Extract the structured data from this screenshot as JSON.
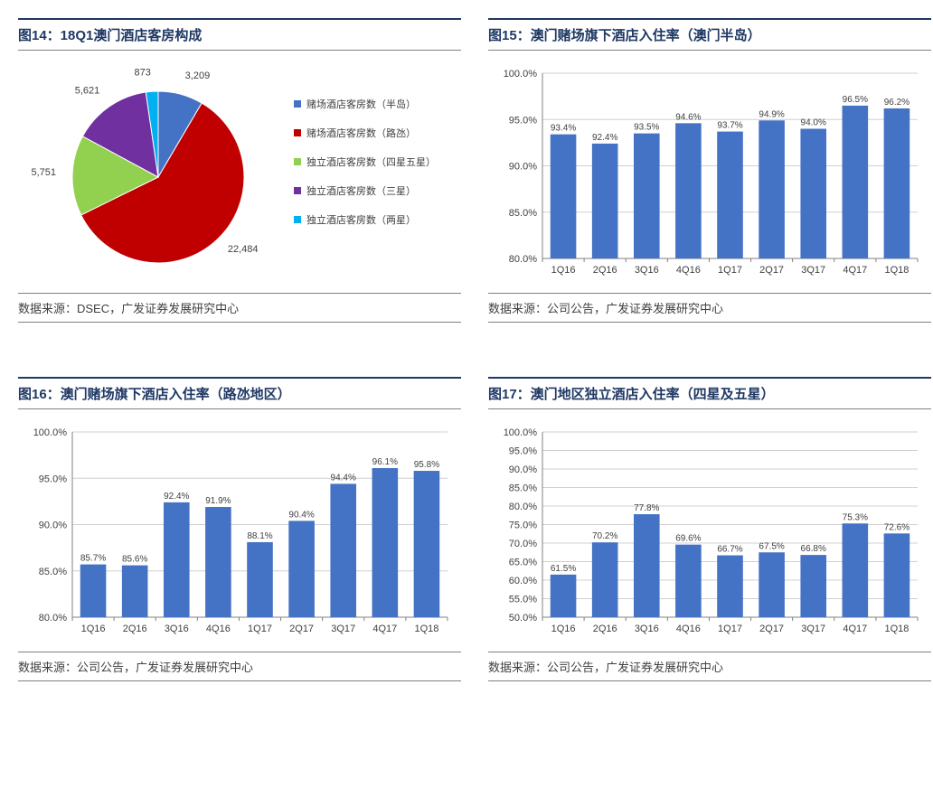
{
  "panels": {
    "p14": {
      "title": "图14：18Q1澳门酒店客房构成",
      "source": "数据来源：DSEC，广发证券发展研究中心",
      "chart": {
        "type": "pie",
        "slices": [
          {
            "label": "赌场酒店客房数（半岛）",
            "value": 3209,
            "color": "#4472c4"
          },
          {
            "label": "赌场酒店客房数（路氹）",
            "value": 22484,
            "color": "#c00000"
          },
          {
            "label": "独立酒店客房数（四星五星）",
            "value": 5751,
            "color": "#92d050"
          },
          {
            "label": "独立酒店客房数（三星）",
            "value": 5621,
            "color": "#7030a0"
          },
          {
            "label": "独立酒店客房数（两星）",
            "value": 873,
            "color": "#00b0f0"
          }
        ],
        "slice_border": "#ffffff",
        "legend_marker": "square"
      }
    },
    "p15": {
      "title": "图15：澳门赌场旗下酒店入住率（澳门半岛）",
      "source": "数据来源：公司公告，广发证券发展研究中心",
      "chart": {
        "type": "bar",
        "categories": [
          "1Q16",
          "2Q16",
          "3Q16",
          "4Q16",
          "1Q17",
          "2Q17",
          "3Q17",
          "4Q17",
          "1Q18"
        ],
        "values": [
          93.4,
          92.4,
          93.5,
          94.6,
          93.7,
          94.9,
          94.0,
          96.5,
          96.2
        ],
        "value_suffix": "%",
        "bar_color": "#4472c4",
        "ymin": 80.0,
        "ymax": 100.0,
        "ystep": 5.0,
        "grid_color": "#d0d0d0",
        "axis_color": "#808080",
        "label_fontsize": 10
      }
    },
    "p16": {
      "title": "图16：澳门赌场旗下酒店入住率（路氹地区）",
      "source": "数据来源：公司公告，广发证券发展研究中心",
      "chart": {
        "type": "bar",
        "categories": [
          "1Q16",
          "2Q16",
          "3Q16",
          "4Q16",
          "1Q17",
          "2Q17",
          "3Q17",
          "4Q17",
          "1Q18"
        ],
        "values": [
          85.7,
          85.6,
          92.4,
          91.9,
          88.1,
          90.4,
          94.4,
          96.1,
          95.8
        ],
        "value_suffix": "%",
        "bar_color": "#4472c4",
        "ymin": 80.0,
        "ymax": 100.0,
        "ystep": 5.0,
        "grid_color": "#d0d0d0",
        "axis_color": "#808080",
        "label_fontsize": 10
      }
    },
    "p17": {
      "title": "图17：澳门地区独立酒店入住率（四星及五星）",
      "source": "数据来源：公司公告，广发证券发展研究中心",
      "chart": {
        "type": "bar",
        "categories": [
          "1Q16",
          "2Q16",
          "3Q16",
          "4Q16",
          "1Q17",
          "2Q17",
          "3Q17",
          "4Q17",
          "1Q18"
        ],
        "values": [
          61.5,
          70.2,
          77.8,
          69.6,
          66.7,
          67.5,
          66.8,
          75.3,
          72.6
        ],
        "value_suffix": "%",
        "bar_color": "#4472c4",
        "ymin": 50.0,
        "ymax": 100.0,
        "ystep": 5.0,
        "grid_color": "#d0d0d0",
        "axis_color": "#808080",
        "label_fontsize": 10
      }
    }
  }
}
